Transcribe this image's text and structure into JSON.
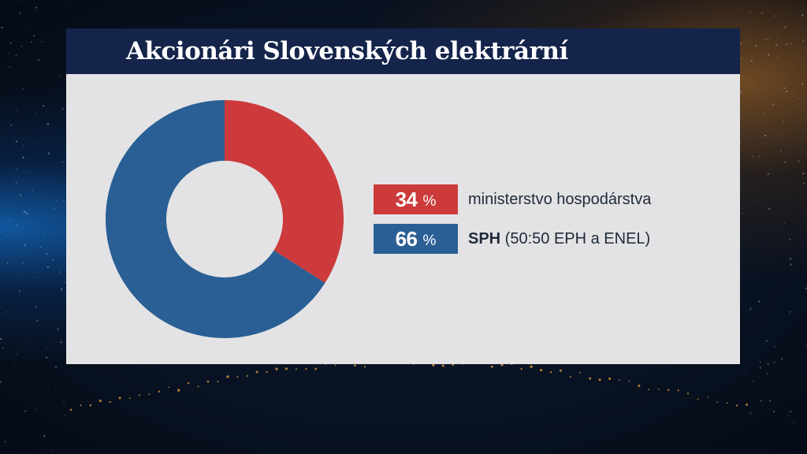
{
  "title": "Akcionári Slovenských elektrární",
  "colors": {
    "header": "#14244a",
    "panel": "#e3e3e5",
    "red": "#cc3a3b",
    "blue": "#2a5f95",
    "text": "#1f2a3a"
  },
  "legend": [
    {
      "value": "34",
      "unit": "%",
      "label": "ministerstvo hospodárstva",
      "label_bold": "",
      "label_rest": "",
      "color": "#cc3a3b"
    },
    {
      "value": "66",
      "unit": "%",
      "label": "",
      "label_bold": "SPH",
      "label_rest": " (50:50 EPH a ENEL)",
      "color": "#2a5f95"
    }
  ],
  "chart_data": {
    "type": "pie",
    "title": "Akcionári Slovenských elektrární",
    "donut": true,
    "slices": [
      {
        "label": "ministerstvo hospodárstva",
        "value": 34,
        "color": "#cc3a3b"
      },
      {
        "label": "SPH (50:50 EPH a ENEL)",
        "value": 66,
        "color": "#2a5f95"
      }
    ]
  }
}
